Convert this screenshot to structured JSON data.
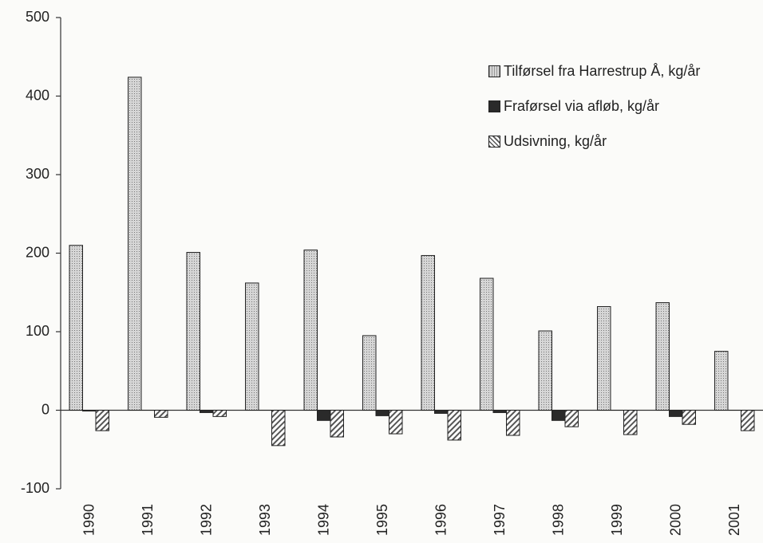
{
  "chart_data": {
    "type": "bar",
    "categories": [
      "1990",
      "1991",
      "1992",
      "1993",
      "1994",
      "1995",
      "1996",
      "1997",
      "1998",
      "1999",
      "2000",
      "2001"
    ],
    "series": [
      {
        "name": "Tilførsel fra Harrestrup Å, kg/år",
        "color": "#c4c4c4",
        "pattern": "dots",
        "values": [
          210,
          424,
          201,
          162,
          204,
          95,
          197,
          168,
          101,
          132,
          137,
          75
        ]
      },
      {
        "name": "Fraførsel via afløb, kg/år",
        "color": "#2a2a2a",
        "pattern": "solid",
        "values": [
          -1,
          0,
          -3,
          0,
          -13,
          -7,
          -4,
          -3,
          -13,
          0,
          -8,
          0
        ]
      },
      {
        "name": "Udsivning, kg/år",
        "color": "#8a8a8a",
        "pattern": "hatch",
        "values": [
          -26,
          -9,
          -8,
          -45,
          -34,
          -30,
          -38,
          -32,
          -21,
          -31,
          -18,
          -26
        ]
      }
    ],
    "ylim": [
      -100,
      500
    ],
    "yticks": [
      -100,
      0,
      100,
      200,
      300,
      400,
      500
    ],
    "grid": false,
    "legend": "top-right"
  }
}
